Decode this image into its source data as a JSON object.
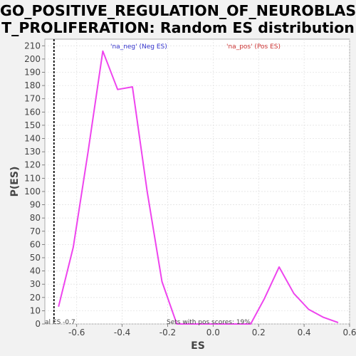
{
  "title_lines": [
    "GO_POSITIVE_REGULATION_OF_NEUROBLAS",
    "T_PROLIFERATION: Random ES distribution"
  ],
  "chart_data": {
    "type": "line",
    "title": "GO_POSITIVE_REGULATION_OF_NEUROBLAST_PROLIFERATION: Random ES distribution",
    "xlabel": "ES",
    "ylabel": "P(ES)",
    "xlim": [
      -0.74,
      0.6
    ],
    "ylim": [
      0,
      215
    ],
    "xticks": [
      -0.6,
      -0.4,
      -0.2,
      0.0,
      0.2,
      0.4,
      0.6
    ],
    "xtick_labels": [
      "-0.6",
      "-0.4",
      "-0.2",
      "0.0",
      "0.2",
      "0.4",
      "0.6"
    ],
    "yticks": [
      0,
      10,
      20,
      30,
      40,
      50,
      60,
      70,
      80,
      90,
      100,
      110,
      120,
      130,
      140,
      150,
      160,
      170,
      180,
      190,
      200,
      210
    ],
    "grid": true,
    "series": [
      {
        "color": "#ee44ee",
        "x": [
          -0.68,
          -0.615,
          -0.55,
          -0.485,
          -0.42,
          -0.355,
          -0.29,
          -0.225,
          -0.16,
          -0.095,
          -0.03,
          0.035,
          0.1,
          0.165,
          0.225,
          0.29,
          0.355,
          0.42,
          0.485,
          0.55
        ],
        "y": [
          13,
          58,
          130,
          206,
          177,
          179,
          100,
          32,
          0,
          0,
          0,
          0,
          0,
          0,
          19,
          43,
          23,
          11,
          5,
          1
        ]
      }
    ],
    "legend": [
      {
        "label": "'na_neg' (Neg ES)",
        "color": "#3333cc"
      },
      {
        "label": "'na_pos' (Pos ES)",
        "color": "#cc3333"
      }
    ],
    "reference_line": {
      "x": -0.7,
      "style": "dashed",
      "color": "#000000"
    },
    "annotations": {
      "real_es": "al ES -0.7",
      "pos_scores": "Sets with pos scores: 19%"
    }
  }
}
